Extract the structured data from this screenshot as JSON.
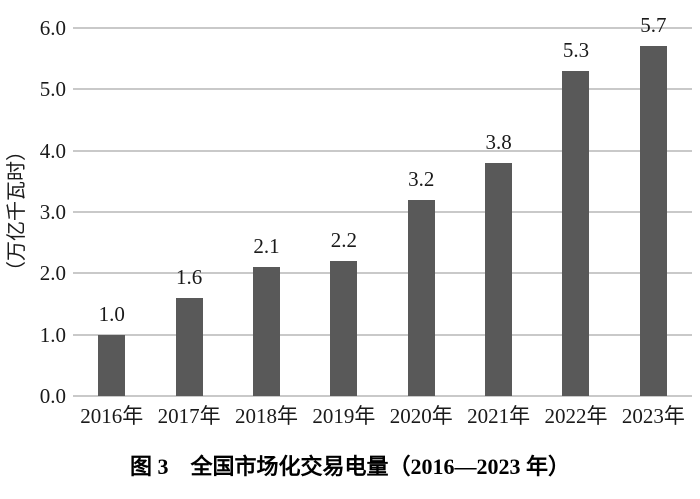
{
  "chart_data": {
    "type": "bar",
    "title": "",
    "caption": "图 3　全国市场化交易电量（2016—2023 年）",
    "xlabel": "",
    "ylabel": "（万亿千瓦时）",
    "categories": [
      "2016年",
      "2017年",
      "2018年",
      "2019年",
      "2020年",
      "2021年",
      "2022年",
      "2023年"
    ],
    "values": [
      1.0,
      1.6,
      2.1,
      2.2,
      3.2,
      3.8,
      5.3,
      5.7
    ],
    "value_labels": [
      "1.0",
      "1.6",
      "2.1",
      "2.2",
      "3.2",
      "3.8",
      "5.3",
      "5.7"
    ],
    "ytick_labels": [
      "0.0",
      "1.0",
      "2.0",
      "3.0",
      "4.0",
      "5.0",
      "6.0"
    ],
    "ylim": [
      0,
      6
    ],
    "grid": "horizontal",
    "legend": "none",
    "bar_color": "#595959",
    "gridline_color": "#c9c9c9",
    "background_color": "#ffffff",
    "text_color": "#1a1a1a"
  }
}
